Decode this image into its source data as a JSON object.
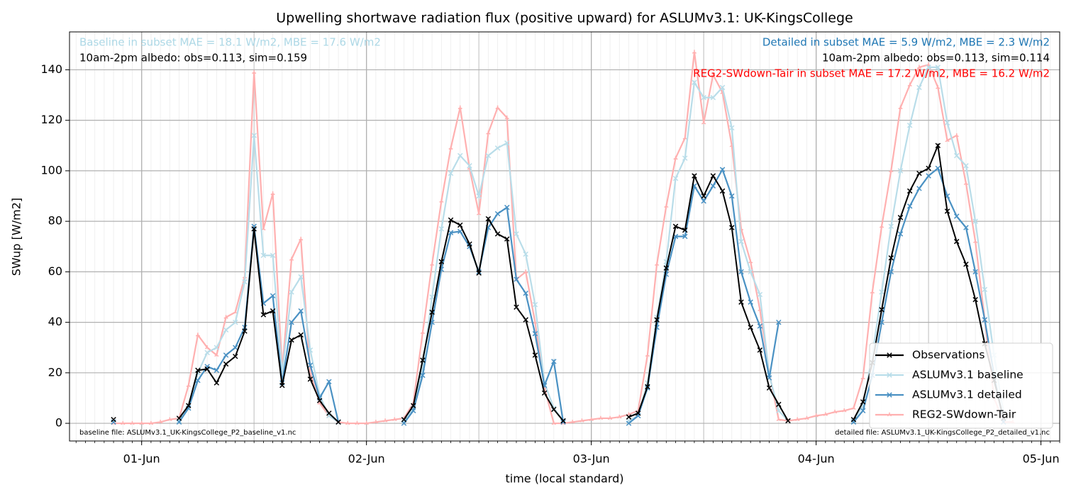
{
  "chart_data": {
    "type": "line",
    "title": "Upwelling shortwave radiation flux (positive upward) for ASLUMv3.1: UK-KingsCollege",
    "xlabel": "time (local standard)",
    "ylabel": "SWup [W/m2]",
    "xlim": [
      -7.7,
      98
    ],
    "ylim": [
      -7,
      155
    ],
    "xticks": [
      {
        "value": 0,
        "label": "01-Jun"
      },
      {
        "value": 24,
        "label": "02-Jun"
      },
      {
        "value": 48,
        "label": "03-Jun"
      },
      {
        "value": 72,
        "label": "04-Jun"
      },
      {
        "value": 96,
        "label": "05-Jun"
      }
    ],
    "yticks": [
      0,
      20,
      40,
      60,
      80,
      100,
      120,
      140
    ],
    "grid": true,
    "legend_loc": "lower right",
    "x": [
      -3,
      -2,
      -1,
      0,
      1,
      2,
      3,
      4,
      5,
      6,
      7,
      8,
      9,
      10,
      11,
      12,
      13,
      14,
      15,
      16,
      17,
      18,
      19,
      20,
      21,
      22,
      23,
      24,
      25,
      26,
      27,
      28,
      29,
      30,
      31,
      32,
      33,
      34,
      35,
      36,
      37,
      38,
      39,
      40,
      41,
      42,
      43,
      44,
      45,
      46,
      47,
      48,
      49,
      50,
      51,
      52,
      53,
      54,
      55,
      56,
      57,
      58,
      59,
      60,
      61,
      62,
      63,
      64,
      65,
      66,
      67,
      68,
      69,
      70,
      71,
      72,
      73,
      74,
      75,
      76,
      77,
      78,
      79,
      80,
      81,
      82,
      83,
      84,
      85,
      86,
      87,
      88,
      89,
      90,
      91,
      92,
      93
    ],
    "series": [
      {
        "name": "Observations",
        "color": "#000000",
        "marker": "x",
        "values": [
          1.5,
          null,
          null,
          null,
          null,
          null,
          null,
          2,
          7,
          21,
          21.5,
          16,
          23.5,
          26.5,
          36.5,
          77,
          43,
          44.5,
          15,
          33,
          35,
          17.5,
          9,
          4,
          0.5,
          null,
          null,
          null,
          null,
          null,
          null,
          1.5,
          7,
          25,
          44,
          64,
          80.5,
          78.5,
          71,
          59.5,
          81,
          75,
          73,
          46,
          41,
          27,
          12,
          5.5,
          1,
          null,
          null,
          null,
          null,
          null,
          null,
          2.5,
          4,
          14.5,
          41,
          61.5,
          78,
          76.5,
          98,
          90,
          98,
          92,
          77.5,
          48,
          38,
          29,
          14,
          7.5,
          1,
          null,
          null,
          null,
          null,
          null,
          null,
          1.5,
          8.5,
          24,
          45,
          65.5,
          81.5,
          92,
          99,
          101,
          110,
          84,
          72,
          63,
          49,
          31.5,
          17,
          2,
          null
        ]
      },
      {
        "name": "ASLUMv3.1 baseline",
        "color": "#b9dde9",
        "marker": "x",
        "values": [
          0.5,
          null,
          null,
          null,
          null,
          null,
          null,
          1,
          6,
          20,
          28,
          30,
          37,
          40,
          56,
          114,
          66.5,
          66.5,
          20,
          52,
          58,
          29,
          11,
          3,
          0.5,
          null,
          null,
          null,
          null,
          null,
          null,
          1,
          6,
          22,
          50,
          77,
          99,
          106,
          102,
          90,
          106,
          109,
          111,
          75,
          67,
          47,
          16,
          6,
          1,
          null,
          null,
          null,
          null,
          null,
          null,
          1,
          3,
          16,
          42,
          64,
          97,
          105,
          135,
          129,
          129,
          133,
          117,
          72,
          60,
          51,
          19,
          5,
          1,
          null,
          null,
          null,
          null,
          null,
          null,
          1,
          7,
          27,
          52,
          78,
          100,
          118,
          133,
          141,
          141,
          119,
          106,
          102,
          80,
          53,
          27,
          4,
          null
        ]
      },
      {
        "name": "ASLUMv3.1 detailed",
        "color": "#4a91c3",
        "marker": "x",
        "values": [
          0.5,
          null,
          null,
          null,
          null,
          null,
          null,
          0.5,
          6,
          17,
          22.5,
          21,
          27,
          30,
          38,
          78,
          47.5,
          50.5,
          16,
          40,
          44.5,
          23,
          10,
          16.5,
          0.5,
          null,
          null,
          null,
          null,
          null,
          null,
          0,
          5,
          19,
          40,
          61,
          75.5,
          76,
          70,
          60,
          77.5,
          83,
          85.5,
          57,
          51.5,
          35.5,
          15,
          24.5,
          0.5,
          null,
          null,
          null,
          null,
          null,
          null,
          0,
          3,
          14,
          38,
          59,
          74,
          74,
          94,
          88,
          94,
          100.5,
          90,
          60,
          48,
          38.5,
          18,
          40,
          null,
          null,
          null,
          null,
          null,
          null,
          null,
          0.5,
          5,
          19,
          40,
          60,
          75,
          86,
          93,
          98,
          101,
          90,
          82,
          77.5,
          60,
          41,
          19,
          0.5,
          null
        ]
      },
      {
        "name": "REG2-SWdown-Tair",
        "color": "#ffb0b0",
        "marker": "tri",
        "values": [
          0,
          0,
          0,
          0,
          0,
          0.5,
          1.5,
          2,
          15,
          35,
          30,
          27,
          42,
          44,
          58,
          139,
          77,
          91,
          21,
          65,
          73,
          20,
          8,
          3,
          0.5,
          0,
          0,
          0,
          0.5,
          1,
          1.5,
          2,
          8,
          36,
          63,
          88,
          109,
          125,
          101,
          83,
          115,
          125,
          121,
          57,
          60,
          40,
          14,
          0,
          0,
          0.5,
          1,
          1.5,
          2,
          2,
          2.5,
          3.5,
          5,
          27,
          63,
          86,
          105,
          113,
          147,
          119,
          138,
          131,
          110,
          77,
          64,
          45,
          20,
          1.5,
          1,
          1.5,
          2,
          3,
          3.5,
          4.5,
          5,
          6,
          18,
          52,
          78,
          100,
          125,
          134,
          141,
          142,
          133,
          112,
          114,
          95,
          72,
          41,
          10,
          0.5,
          0.5
        ]
      }
    ],
    "annotations": [
      {
        "text": "Baseline in subset MAE = 18.1 W/m2, MBE = 17.6 W/m2",
        "color": "#add8e6",
        "loc": "upper left"
      },
      {
        "text": "10am-2pm albedo: obs=0.113, sim=0.159",
        "color": "#000000",
        "loc": "upper left"
      },
      {
        "text": "Detailed in subset MAE = 5.9 W/m2, MBE = 2.3 W/m2",
        "color": "#1f77b4",
        "loc": "upper right"
      },
      {
        "text": "10am-2pm albedo: obs=0.113, sim=0.114",
        "color": "#000000",
        "loc": "upper right"
      },
      {
        "text": "REG2-SWdown-Tair in subset MAE = 17.2 W/m2, MBE = 16.2 W/m2",
        "color": "#ff0000",
        "loc": "upper right"
      },
      {
        "text": "baseline file: ASLUMv3.1_UK-KingsCollege_P2_baseline_v1.nc",
        "color": "#000000",
        "loc": "lower left"
      },
      {
        "text": "detailed file: ASLUMv3.1_UK-KingsCollege_P2_detailed_v1.nc",
        "color": "#000000",
        "loc": "lower right"
      }
    ]
  }
}
